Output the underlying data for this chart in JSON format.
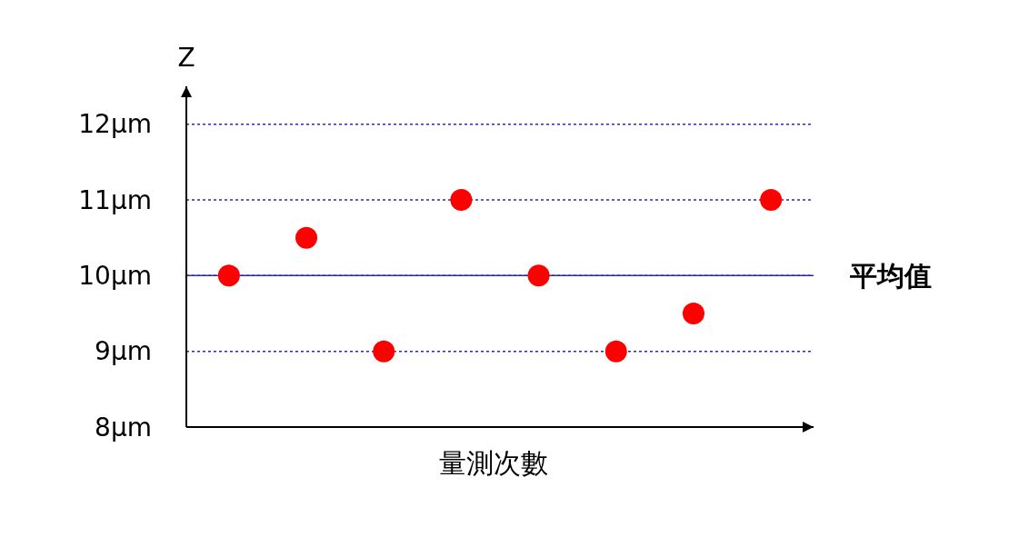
{
  "chart_data": {
    "type": "scatter",
    "xlabel": "量測次數",
    "ylabel": "Z",
    "categories": [
      null,
      null,
      null,
      null,
      null,
      null,
      null,
      null
    ],
    "values": [
      10,
      10.5,
      9,
      11,
      10,
      9,
      9.5,
      11
    ],
    "color": "#ff0000",
    "marker": "circle",
    "ylim": [
      8,
      12.5
    ],
    "yticks": [
      {
        "value": 8,
        "label": "8μm"
      },
      {
        "value": 9,
        "label": "9μm"
      },
      {
        "value": 10,
        "label": "10μm"
      },
      {
        "value": 11,
        "label": "11μm"
      },
      {
        "value": 12,
        "label": "12μm"
      }
    ],
    "grid": "y",
    "ref_lines": [
      {
        "axis": "y",
        "value": 10,
        "label": "平均值",
        "color": "#2a2ab0",
        "line_style": "solid"
      }
    ]
  }
}
